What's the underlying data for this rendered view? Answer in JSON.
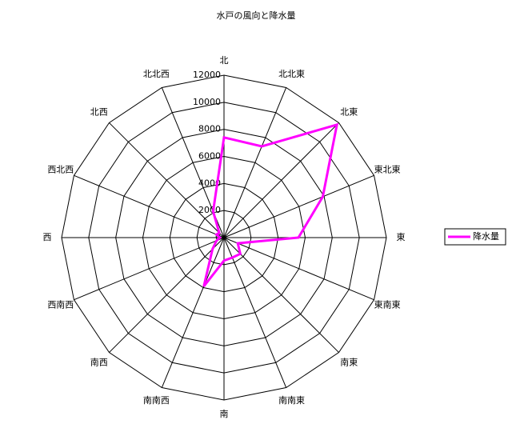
{
  "chart_data": {
    "type": "radar",
    "title": "水戸の風向と降水量",
    "categories": [
      "北",
      "北北東",
      "北東",
      "東北東",
      "東",
      "東南東",
      "南東",
      "南南東",
      "南",
      "南南西",
      "南西",
      "西南西",
      "西",
      "西北西",
      "北西",
      "北北西"
    ],
    "series": [
      {
        "name": "降水量",
        "color": "#ff00ff",
        "values": [
          7400,
          7300,
          11800,
          7900,
          5500,
          1100,
          1700,
          1600,
          1700,
          3900,
          1200,
          600,
          300,
          600,
          500,
          2100
        ]
      }
    ],
    "ylim": [
      0,
      12000
    ],
    "yticks": [
      0,
      2000,
      4000,
      6000,
      8000,
      10000,
      12000
    ],
    "grid": true,
    "legend": "right"
  }
}
